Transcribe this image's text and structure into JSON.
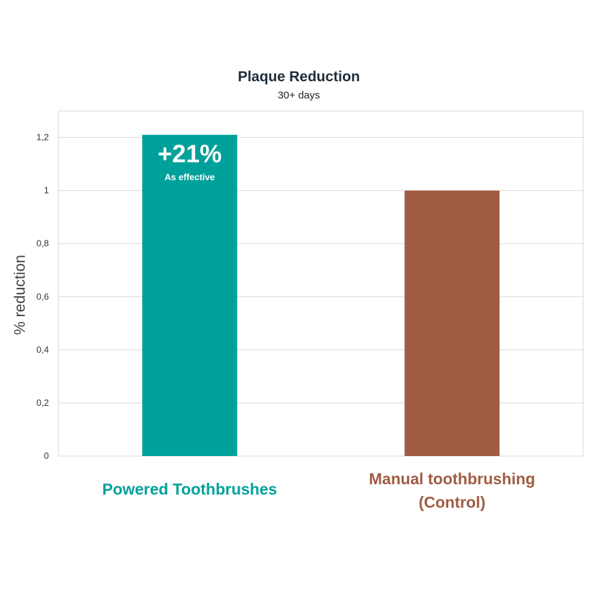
{
  "chart_data": {
    "type": "bar",
    "title": "Plaque Reduction",
    "subtitle": "30+ days",
    "ylabel": "% reduction",
    "xlabel": "",
    "ylim": [
      0,
      1.3
    ],
    "yticks": [
      "0",
      "0,2",
      "0,4",
      "0,6",
      "0,8",
      "1",
      "1,2"
    ],
    "yticks_values": [
      0,
      0.2,
      0.4,
      0.6,
      0.8,
      1.0,
      1.2
    ],
    "grid": true,
    "categories": [
      {
        "lines": [
          "Powered Toothbrushes"
        ],
        "color": "#00a19a"
      },
      {
        "lines": [
          "Manual toothbrushing",
          "(Control)"
        ],
        "color": "#a05c42"
      }
    ],
    "values": [
      1.21,
      1.0
    ],
    "bar_colors": [
      "#00a19a",
      "#a05c42"
    ],
    "annotation": {
      "big": "+21%",
      "small": "As effective"
    }
  }
}
